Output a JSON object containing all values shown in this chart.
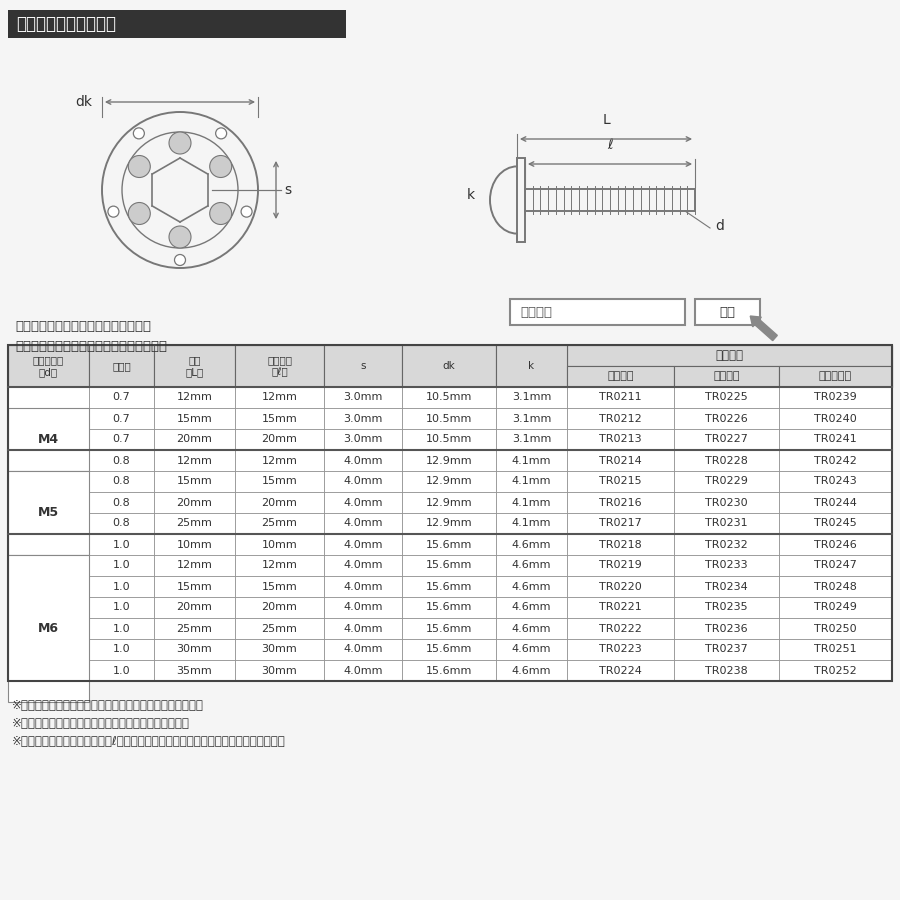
{
  "title": "ラインアップ＆サイズ",
  "title_bg": "#333333",
  "title_color": "#ffffff",
  "search_text1": "ストア内検索に商品番号を入力すると",
  "search_text2": "お探しの商品に素早くアクセスできます。",
  "search_box_label": "商品番号",
  "search_btn_label": "検索",
  "footnotes": [
    "※記載の重量は平均値です。個体により誤差がございます。",
    "※虹色は個体差により着色が異なる場合がございます。",
    "※製造過程の都合でネジ長さ（ℓ）が変わる場合がございます。予めご了承ください。"
  ],
  "col_headers": [
    "ネジの呼び\n（d）",
    "ピッチ",
    "長さ\n（L）",
    "ネジ長さ\n（ℓ）",
    "s",
    "dk",
    "k",
    "シルバー",
    "ゴールド",
    "焼きチタン"
  ],
  "super_header": "当店品番",
  "table_header_bg": "#d8d8d8",
  "table_row_bg_light": "#ffffff",
  "rows": [
    [
      "M4",
      "0.7",
      "12mm",
      "12mm",
      "3.0mm",
      "10.5mm",
      "3.1mm",
      "TR0211",
      "TR0225",
      "TR0239"
    ],
    [
      "",
      "0.7",
      "15mm",
      "15mm",
      "3.0mm",
      "10.5mm",
      "3.1mm",
      "TR0212",
      "TR0226",
      "TR0240"
    ],
    [
      "",
      "0.7",
      "20mm",
      "20mm",
      "3.0mm",
      "10.5mm",
      "3.1mm",
      "TR0213",
      "TR0227",
      "TR0241"
    ],
    [
      "M5",
      "0.8",
      "12mm",
      "12mm",
      "4.0mm",
      "12.9mm",
      "4.1mm",
      "TR0214",
      "TR0228",
      "TR0242"
    ],
    [
      "",
      "0.8",
      "15mm",
      "15mm",
      "4.0mm",
      "12.9mm",
      "4.1mm",
      "TR0215",
      "TR0229",
      "TR0243"
    ],
    [
      "",
      "0.8",
      "20mm",
      "20mm",
      "4.0mm",
      "12.9mm",
      "4.1mm",
      "TR0216",
      "TR0230",
      "TR0244"
    ],
    [
      "",
      "0.8",
      "25mm",
      "25mm",
      "4.0mm",
      "12.9mm",
      "4.1mm",
      "TR0217",
      "TR0231",
      "TR0245"
    ],
    [
      "M6",
      "1.0",
      "10mm",
      "10mm",
      "4.0mm",
      "15.6mm",
      "4.6mm",
      "TR0218",
      "TR0232",
      "TR0246"
    ],
    [
      "",
      "1.0",
      "12mm",
      "12mm",
      "4.0mm",
      "15.6mm",
      "4.6mm",
      "TR0219",
      "TR0233",
      "TR0247"
    ],
    [
      "",
      "1.0",
      "15mm",
      "15mm",
      "4.0mm",
      "15.6mm",
      "4.6mm",
      "TR0220",
      "TR0234",
      "TR0248"
    ],
    [
      "",
      "1.0",
      "20mm",
      "20mm",
      "4.0mm",
      "15.6mm",
      "4.6mm",
      "TR0221",
      "TR0235",
      "TR0249"
    ],
    [
      "",
      "1.0",
      "25mm",
      "25mm",
      "4.0mm",
      "15.6mm",
      "4.6mm",
      "TR0222",
      "TR0236",
      "TR0250"
    ],
    [
      "",
      "1.0",
      "30mm",
      "30mm",
      "4.0mm",
      "15.6mm",
      "4.6mm",
      "TR0223",
      "TR0237",
      "TR0251"
    ],
    [
      "",
      "1.0",
      "35mm",
      "30mm",
      "4.0mm",
      "15.6mm",
      "4.6mm",
      "TR0224",
      "TR0238",
      "TR0252"
    ]
  ],
  "group_spans": [
    {
      "label": "M4",
      "start": 0,
      "end": 2
    },
    {
      "label": "M5",
      "start": 3,
      "end": 6
    },
    {
      "label": "M6",
      "start": 7,
      "end": 13
    }
  ],
  "bg_color": "#f5f5f5"
}
